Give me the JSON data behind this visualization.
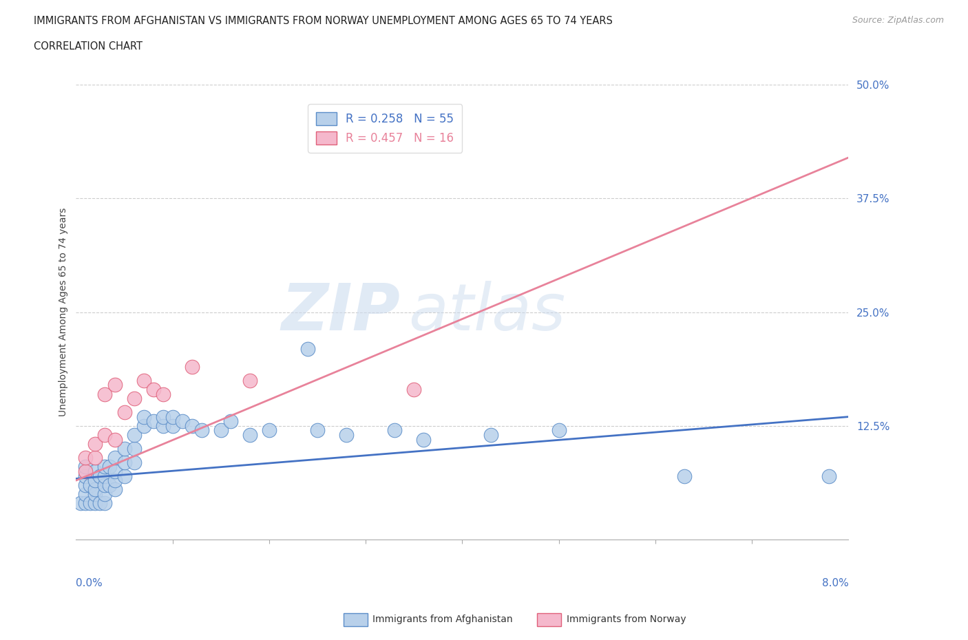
{
  "title_line1": "IMMIGRANTS FROM AFGHANISTAN VS IMMIGRANTS FROM NORWAY UNEMPLOYMENT AMONG AGES 65 TO 74 YEARS",
  "title_line2": "CORRELATION CHART",
  "source": "Source: ZipAtlas.com",
  "ylabel": "Unemployment Among Ages 65 to 74 years",
  "xlim": [
    0.0,
    0.08
  ],
  "ylim": [
    0.0,
    0.5
  ],
  "legend_afg": "R = 0.258   N = 55",
  "legend_nor": "R = 0.457   N = 16",
  "color_afg_face": "#b8d0ea",
  "color_afg_edge": "#5b8dc8",
  "color_nor_face": "#f5b8cc",
  "color_nor_edge": "#e0607a",
  "color_line_afg": "#4472C4",
  "color_line_nor": "#e8829a",
  "color_ticks": "#4472C4",
  "grid_color": "#cccccc",
  "background_color": "#ffffff",
  "afg_x": [
    0.0005,
    0.001,
    0.001,
    0.001,
    0.001,
    0.001,
    0.0015,
    0.0015,
    0.002,
    0.002,
    0.002,
    0.002,
    0.002,
    0.0025,
    0.0025,
    0.003,
    0.003,
    0.003,
    0.003,
    0.003,
    0.0035,
    0.0035,
    0.004,
    0.004,
    0.004,
    0.004,
    0.005,
    0.005,
    0.005,
    0.006,
    0.006,
    0.006,
    0.007,
    0.007,
    0.008,
    0.009,
    0.009,
    0.01,
    0.01,
    0.011,
    0.012,
    0.013,
    0.015,
    0.016,
    0.018,
    0.02,
    0.024,
    0.025,
    0.028,
    0.033,
    0.036,
    0.043,
    0.05,
    0.063,
    0.078
  ],
  "afg_y": [
    0.04,
    0.04,
    0.05,
    0.06,
    0.07,
    0.08,
    0.04,
    0.06,
    0.04,
    0.05,
    0.055,
    0.065,
    0.075,
    0.04,
    0.07,
    0.04,
    0.05,
    0.06,
    0.07,
    0.08,
    0.06,
    0.08,
    0.055,
    0.065,
    0.075,
    0.09,
    0.07,
    0.085,
    0.1,
    0.085,
    0.1,
    0.115,
    0.125,
    0.135,
    0.13,
    0.125,
    0.135,
    0.125,
    0.135,
    0.13,
    0.125,
    0.12,
    0.12,
    0.13,
    0.115,
    0.12,
    0.21,
    0.12,
    0.115,
    0.12,
    0.11,
    0.115,
    0.12,
    0.07,
    0.07
  ],
  "nor_x": [
    0.001,
    0.001,
    0.002,
    0.002,
    0.003,
    0.003,
    0.004,
    0.004,
    0.005,
    0.006,
    0.007,
    0.008,
    0.009,
    0.012,
    0.018,
    0.035
  ],
  "nor_y": [
    0.075,
    0.09,
    0.09,
    0.105,
    0.115,
    0.16,
    0.11,
    0.17,
    0.14,
    0.155,
    0.175,
    0.165,
    0.16,
    0.19,
    0.175,
    0.165
  ],
  "afg_line_x": [
    0.0,
    0.08
  ],
  "afg_line_y": [
    0.067,
    0.135
  ],
  "nor_line_x": [
    0.0,
    0.08
  ],
  "nor_line_y": [
    0.065,
    0.42
  ]
}
